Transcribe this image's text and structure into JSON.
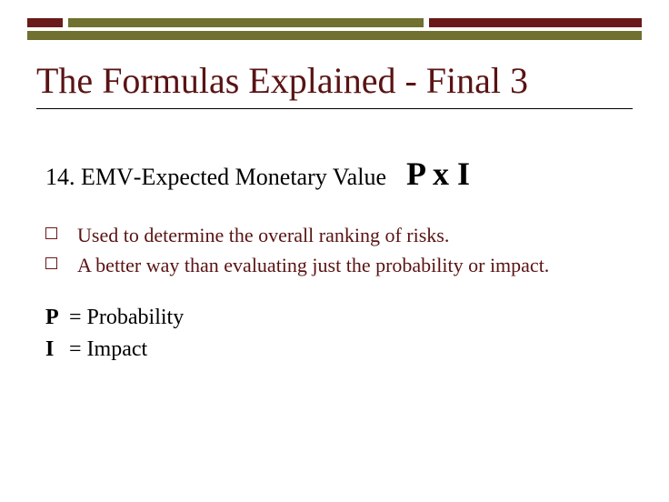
{
  "colors": {
    "maroon": "#6a1a1a",
    "olive": "#707030",
    "title": "#5a1313",
    "bullet_text": "#5a1313",
    "bullet_marker": "#6a1a1a"
  },
  "top_bars": {
    "row1": [
      {
        "color": "#6a1a1a",
        "flex": 1
      },
      {
        "color": "#707030",
        "flex": 10
      },
      {
        "color": "#6a1a1a",
        "flex": 6
      }
    ],
    "row2": {
      "color": "#707030"
    }
  },
  "title": "The Formulas Explained -  Final 3",
  "item": {
    "number": "14.",
    "abbrev": "EMV",
    "sep": " -  ",
    "name": "Expected Monetary Value",
    "formula": "P x I"
  },
  "bullets": [
    "Used to determine the overall ranking of risks.",
    "A better way than evaluating just the probability or impact."
  ],
  "definitions": [
    {
      "symbol": "P",
      "eq": " = Probability"
    },
    {
      "symbol": "I",
      "eq": "  = Impact"
    }
  ]
}
